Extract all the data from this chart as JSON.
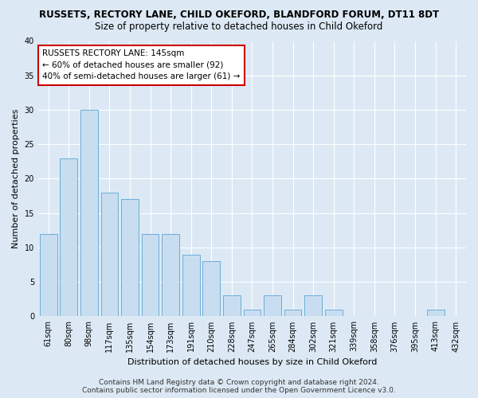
{
  "title": "RUSSETS, RECTORY LANE, CHILD OKEFORD, BLANDFORD FORUM, DT11 8DT",
  "subtitle": "Size of property relative to detached houses in Child Okeford",
  "xlabel": "Distribution of detached houses by size in Child Okeford",
  "ylabel": "Number of detached properties",
  "categories": [
    "61sqm",
    "80sqm",
    "98sqm",
    "117sqm",
    "135sqm",
    "154sqm",
    "173sqm",
    "191sqm",
    "210sqm",
    "228sqm",
    "247sqm",
    "265sqm",
    "284sqm",
    "302sqm",
    "321sqm",
    "339sqm",
    "358sqm",
    "376sqm",
    "395sqm",
    "413sqm",
    "432sqm"
  ],
  "values": [
    12,
    23,
    30,
    18,
    17,
    12,
    12,
    9,
    8,
    3,
    1,
    3,
    1,
    3,
    1,
    0,
    0,
    0,
    0,
    1,
    0
  ],
  "bar_color": "#c9ddf0",
  "bar_edge_color": "#6aaed6",
  "annotation_text_line1": "RUSSETS RECTORY LANE: 145sqm",
  "annotation_text_line2": "← 60% of detached houses are smaller (92)",
  "annotation_text_line3": "40% of semi-detached houses are larger (61) →",
  "annotation_box_color": "#ffffff",
  "annotation_box_edge_color": "#cc0000",
  "ylim": [
    0,
    40
  ],
  "yticks": [
    0,
    5,
    10,
    15,
    20,
    25,
    30,
    35,
    40
  ],
  "footer_line1": "Contains HM Land Registry data © Crown copyright and database right 2024.",
  "footer_line2": "Contains public sector information licensed under the Open Government Licence v3.0.",
  "background_color": "#dce9f5",
  "plot_bg_color": "#dce9f5",
  "grid_color": "#ffffff",
  "title_fontsize": 8.5,
  "subtitle_fontsize": 8.5,
  "axis_label_fontsize": 8,
  "tick_fontsize": 7,
  "annotation_fontsize": 7.5,
  "footer_fontsize": 6.5
}
